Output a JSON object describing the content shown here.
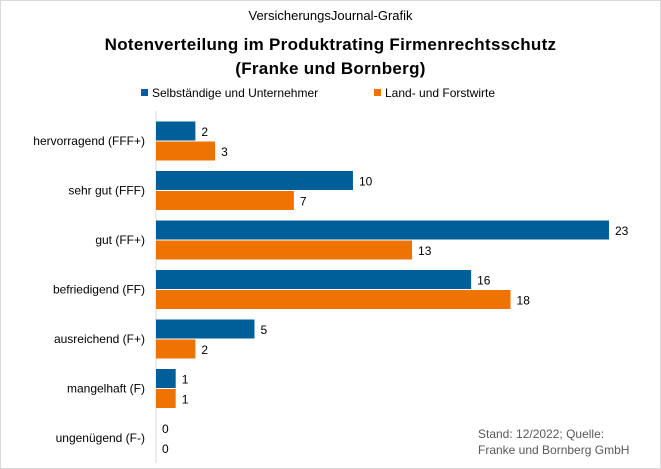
{
  "header": {
    "source_label": "VersicherungsJournal-Grafik"
  },
  "footnote": {
    "line1": "Stand: 12/2022; Quelle:",
    "line2": "Franke und Bornberg GmbH"
  },
  "chart_data": {
    "type": "bar",
    "orientation": "horizontal",
    "title": "Notenverteilung im Produktrating Firmenrechtsschutz",
    "subtitle": "(Franke und Bornberg)",
    "categories": [
      "hervorragend (FFF+)",
      "sehr gut (FFF)",
      "gut (FF+)",
      "befriedigend (FF)",
      "ausreichend (F+)",
      "mangelhaft (F)",
      "ungenügend (F-)"
    ],
    "series": [
      {
        "name": "Selbständige und Unternehmer",
        "color": "#005f99",
        "values": [
          2,
          10,
          23,
          16,
          5,
          1,
          0
        ]
      },
      {
        "name": "Land- und Forstwirte",
        "color": "#ef7300",
        "values": [
          3,
          7,
          13,
          18,
          2,
          1,
          0
        ]
      }
    ],
    "xlim": [
      0,
      23
    ],
    "legend": "top",
    "grid": false,
    "data_labels": true
  }
}
